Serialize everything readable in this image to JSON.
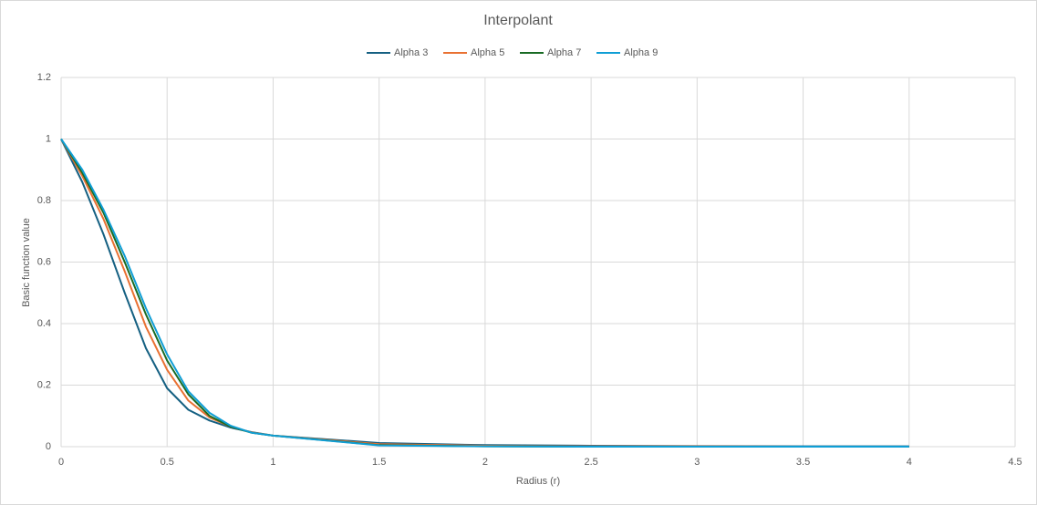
{
  "chart_data": {
    "type": "line",
    "title": "Interpolant",
    "x_label": "Radius (r)",
    "y_label": "Basic function value",
    "x": [
      0,
      0.1,
      0.2,
      0.3,
      0.4,
      0.5,
      0.6,
      0.7,
      0.8,
      0.9,
      1,
      1.5,
      2,
      2.5,
      3,
      3.5,
      4
    ],
    "series": [
      {
        "name": "Alpha 3",
        "color": "#156082",
        "values": [
          1,
          0.86,
          0.69,
          0.5,
          0.32,
          0.19,
          0.12,
          0.085,
          0.062,
          0.047,
          0.036,
          0.012,
          0.005,
          0.003,
          0.002,
          0.001,
          0.001
        ]
      },
      {
        "name": "Alpha 5",
        "color": "#e97132",
        "values": [
          1,
          0.88,
          0.74,
          0.57,
          0.39,
          0.25,
          0.15,
          0.095,
          0.065,
          0.046,
          0.036,
          0.008,
          0.003,
          0.001,
          0.001,
          0,
          0
        ]
      },
      {
        "name": "Alpha 7",
        "color": "#196b24",
        "values": [
          1,
          0.89,
          0.76,
          0.6,
          0.43,
          0.28,
          0.17,
          0.1,
          0.065,
          0.045,
          0.036,
          0.005,
          0.001,
          0,
          0,
          0,
          0
        ]
      },
      {
        "name": "Alpha 9",
        "color": "#0f9ed5",
        "values": [
          1,
          0.9,
          0.77,
          0.62,
          0.45,
          0.3,
          0.18,
          0.11,
          0.068,
          0.045,
          0.036,
          0.004,
          0.001,
          0,
          0,
          0,
          0
        ]
      }
    ],
    "xlim": [
      0,
      4.5
    ],
    "xticks": [
      0,
      0.5,
      1,
      1.5,
      2,
      2.5,
      3,
      3.5,
      4,
      4.5
    ],
    "ylim": [
      0,
      1.2
    ],
    "yticks": [
      0,
      0.2,
      0.4,
      0.6,
      0.8,
      1,
      1.2
    ],
    "grid": true,
    "legend": "top"
  }
}
